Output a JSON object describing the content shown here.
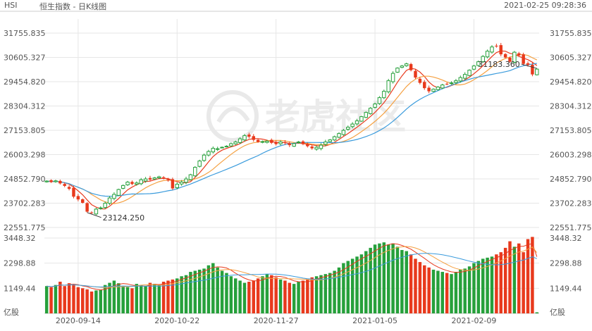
{
  "header": {
    "symbol": "HSI",
    "name": "恒生指数 - 日K线图",
    "timestamp": "2021-02-25 09:28:36"
  },
  "watermark": {
    "text": "老虎社区",
    "icon": "tiger-logo-icon"
  },
  "colors": {
    "up": "#26a03b",
    "down": "#e8391c",
    "ma_short": "#e8391c",
    "ma_mid": "#f5a142",
    "ma_long": "#3a9bdc",
    "grid": "#e6e6e6",
    "axis_text": "#555555"
  },
  "chart_data": {
    "type": "candlestick",
    "price_axis": {
      "ticks": [
        "31755.835",
        "30605.327",
        "29454.820",
        "28304.312",
        "27153.805",
        "26003.298",
        "24852.790",
        "23702.283",
        "22551.775"
      ],
      "range": [
        22551.775,
        31755.835
      ]
    },
    "volume_axis": {
      "ticks": [
        "3448.32",
        "2298.88",
        "1149.44"
      ],
      "unit": "亿股",
      "range": [
        0,
        3448.32
      ]
    },
    "x_labels": [
      "2020-09-14",
      "2020-10-22",
      "2020-11-27",
      "2021-01-05",
      "2021-02-09"
    ],
    "annotations": [
      {
        "label": "31183.360",
        "type": "max",
        "index": 109
      },
      {
        "label": "23124.250",
        "type": "min",
        "index": 9
      }
    ],
    "ma_series": [
      "ma_short",
      "ma_mid",
      "ma_long"
    ],
    "closes": [
      24750,
      24700,
      24760,
      24640,
      24520,
      24380,
      24010,
      23880,
      23720,
      23300,
      23250,
      23420,
      23480,
      23700,
      23950,
      24120,
      24350,
      24540,
      24700,
      24610,
      24660,
      24810,
      24850,
      24820,
      24900,
      24950,
      24880,
      24780,
      24400,
      24600,
      24700,
      24850,
      25050,
      25400,
      25700,
      25980,
      26150,
      26300,
      26280,
      26350,
      26400,
      26520,
      26600,
      26750,
      26900,
      26850,
      26700,
      26600,
      26620,
      26640,
      26560,
      26500,
      26600,
      26550,
      26450,
      26520,
      26600,
      26500,
      26400,
      26300,
      26350,
      26450,
      26600,
      26700,
      26850,
      27000,
      27150,
      27300,
      27450,
      27600,
      27800,
      28000,
      28200,
      28400,
      28700,
      29000,
      29500,
      29850,
      30100,
      30200,
      30300,
      30000,
      29650,
      29400,
      29150,
      29000,
      29100,
      29200,
      29300,
      29350,
      29400,
      29500,
      29650,
      29800,
      30000,
      30200,
      30400,
      30650,
      30900,
      31100,
      31150,
      30750,
      30600,
      30400,
      30850,
      30700,
      30300,
      30250,
      29800,
      30050
    ],
    "volumes": [
      1250,
      1200,
      1300,
      1450,
      1250,
      1380,
      1300,
      1200,
      1150,
      1100,
      1000,
      1050,
      1080,
      1300,
      1400,
      1500,
      1380,
      1250,
      1200,
      1150,
      1350,
      1300,
      1250,
      1400,
      1350,
      1300,
      1450,
      1500,
      1550,
      1600,
      1700,
      1750,
      1900,
      1950,
      2000,
      2050,
      2200,
      2300,
      2100,
      1950,
      1850,
      1700,
      1600,
      1500,
      1400,
      1450,
      1500,
      1600,
      1700,
      1800,
      1750,
      1650,
      1550,
      1500,
      1400,
      1350,
      1450,
      1500,
      1550,
      1650,
      1700,
      1750,
      1800,
      1850,
      1950,
      2100,
      2300,
      2400,
      2500,
      2600,
      2700,
      2850,
      3000,
      3150,
      3200,
      3250,
      3150,
      3200,
      3050,
      2900,
      2850,
      2700,
      2500,
      2350,
      2200,
      2100,
      2000,
      1950,
      1900,
      1850,
      1800,
      1900,
      2000,
      2050,
      2150,
      2300,
      2400,
      2500,
      2550,
      2600,
      2700,
      2800,
      3000,
      3300,
      3050,
      3200,
      2800,
      3400,
      3500,
      50
    ]
  }
}
